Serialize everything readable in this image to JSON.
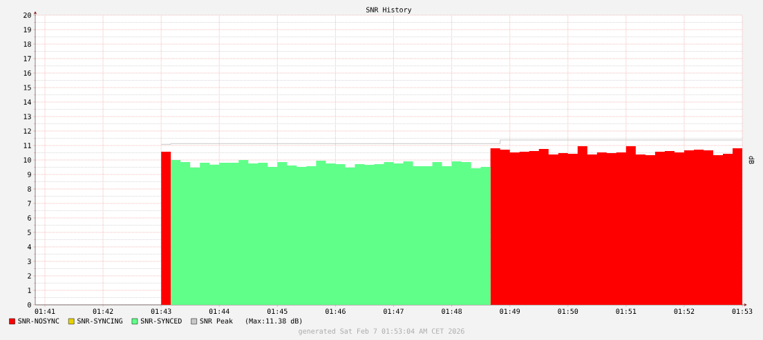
{
  "chart_data": {
    "type": "area",
    "title": "SNR History",
    "ylabel": "dB",
    "x": [
      1.71667,
      1.71944,
      1.71944,
      1.72222,
      1.72222,
      1.725,
      1.725,
      1.72778,
      1.72778,
      1.73056,
      1.73056,
      1.73333,
      1.73333,
      1.73611,
      1.73611,
      1.73889,
      1.73889,
      1.74167,
      1.74167,
      1.74444,
      1.74444,
      1.74722,
      1.74722,
      1.75,
      1.75,
      1.75278,
      1.75278,
      1.75556,
      1.75556,
      1.75833,
      1.75833,
      1.76111,
      1.76111,
      1.76389,
      1.76389,
      1.76667,
      1.76667,
      1.76944,
      1.76944,
      1.77222,
      1.77222,
      1.775,
      1.775,
      1.77778,
      1.77778,
      1.78056,
      1.78056,
      1.78333,
      1.78333,
      1.78611,
      1.78611,
      1.78889,
      1.78889,
      1.79167,
      1.79167,
      1.79444,
      1.79444,
      1.79722,
      1.79722,
      1.8,
      1.8,
      1.80278,
      1.80278,
      1.80556,
      1.80556,
      1.80833,
      1.80833,
      1.81111,
      1.81111,
      1.81389,
      1.81389,
      1.81667,
      1.81667,
      1.81944,
      1.81944,
      1.82222,
      1.82222,
      1.825,
      1.825,
      1.82778,
      1.82778,
      1.83056,
      1.83056,
      1.83333,
      1.83333,
      1.83611,
      1.83611,
      1.83889,
      1.83889,
      1.84167,
      1.84167,
      1.84444,
      1.84444,
      1.84722,
      1.84722,
      1.85,
      1.85,
      1.85278,
      1.85278,
      1.85556,
      1.85556,
      1.85833,
      1.85833,
      1.86111,
      1.86111,
      1.86389,
      1.86389,
      1.86667,
      1.86667,
      1.86944,
      1.86944,
      1.87222,
      1.87222,
      1.875,
      1.875,
      1.87778,
      1.87778,
      1.88056,
      1.88056,
      1.88333
    ],
    "series": [
      {
        "name": "SNR-NOSYNC",
        "color": "#ff0000",
        "values": [
          10.57,
          10.57,
          null,
          null,
          null,
          null,
          null,
          null,
          null,
          null,
          null,
          null,
          null,
          null,
          null,
          null,
          null,
          null,
          null,
          null,
          null,
          null,
          null,
          null,
          null,
          null,
          null,
          null,
          null,
          null,
          null,
          null,
          null,
          null,
          null,
          null,
          null,
          null,
          null,
          null,
          null,
          null,
          null,
          null,
          null,
          null,
          null,
          null,
          null,
          null,
          null,
          null,
          null,
          null,
          null,
          null,
          null,
          null,
          null,
          null,
          null,
          null,
          null,
          null,
          null,
          null,
          null,
          null,
          10.81,
          10.81,
          10.71,
          10.71,
          10.52,
          10.52,
          10.57,
          10.57,
          10.62,
          10.62,
          10.76,
          10.76,
          10.38,
          10.38,
          10.48,
          10.48,
          10.43,
          10.43,
          10.95,
          10.95,
          10.38,
          10.38,
          10.52,
          10.52,
          10.48,
          10.48,
          10.52,
          10.52,
          10.95,
          10.95,
          10.38,
          10.38,
          10.33,
          10.33,
          10.57,
          10.57,
          10.62,
          10.62,
          10.52,
          10.52,
          10.67,
          10.67,
          10.71,
          10.71,
          10.67,
          10.67,
          10.33,
          10.33,
          10.43,
          10.43,
          10.81,
          10.81
        ]
      },
      {
        "name": "SNR-SYNCING",
        "color": "#e6d200",
        "values": [
          null,
          null,
          null,
          null,
          null,
          null,
          null,
          null,
          null,
          null,
          null,
          null,
          null,
          null,
          null,
          null,
          null,
          null,
          null,
          null,
          null,
          null,
          null,
          null,
          null,
          null,
          null,
          null,
          null,
          null,
          null,
          null,
          null,
          null,
          null,
          null,
          null,
          null,
          null,
          null,
          null,
          null,
          null,
          null,
          null,
          null,
          null,
          null,
          null,
          null,
          null,
          null,
          null,
          null,
          null,
          null,
          null,
          null,
          null,
          null,
          null,
          null,
          null,
          null,
          null,
          null,
          null,
          null,
          null,
          null,
          null,
          null,
          null,
          null,
          null,
          null,
          null,
          null,
          null,
          null,
          null,
          null,
          null,
          null,
          null,
          null,
          null,
          null,
          null,
          null,
          null,
          null,
          null,
          null,
          null,
          null,
          null,
          null,
          null,
          null,
          null,
          null,
          null,
          null,
          null,
          null,
          null,
          null,
          null,
          null,
          null,
          null,
          null,
          null,
          null,
          null,
          null,
          null,
          null,
          null
        ]
      },
      {
        "name": "SNR-SYNCED",
        "color": "#60ff8a",
        "values": [
          null,
          null,
          10.0,
          10.0,
          9.86,
          9.86,
          9.48,
          9.48,
          9.81,
          9.81,
          9.68,
          9.68,
          9.81,
          9.81,
          9.81,
          9.81,
          10.0,
          10.0,
          9.76,
          9.76,
          9.81,
          9.81,
          9.52,
          9.52,
          9.86,
          9.86,
          9.62,
          9.62,
          9.52,
          9.52,
          9.57,
          9.57,
          9.95,
          9.95,
          9.76,
          9.76,
          9.71,
          9.71,
          9.48,
          9.48,
          9.71,
          9.71,
          9.67,
          9.67,
          9.71,
          9.71,
          9.86,
          9.86,
          9.76,
          9.76,
          9.9,
          9.9,
          9.57,
          9.57,
          9.57,
          9.57,
          9.86,
          9.86,
          9.57,
          9.57,
          9.9,
          9.9,
          9.86,
          9.86,
          9.43,
          9.43,
          9.52,
          9.52,
          null,
          null,
          null,
          null,
          null,
          null,
          null,
          null,
          null,
          null,
          null,
          null,
          null,
          null,
          null,
          null,
          null,
          null,
          null,
          null,
          null,
          null,
          null,
          null,
          null,
          null,
          null,
          null,
          null,
          null,
          null,
          null,
          null,
          null,
          null,
          null,
          null,
          null,
          null,
          null,
          null,
          null,
          null,
          null,
          null,
          null,
          null,
          null,
          null,
          null,
          null,
          null
        ]
      },
      {
        "name": "SNR Peak",
        "type": "line",
        "color": "#c8c8c8",
        "values": [
          11.08,
          11.08,
          11.13,
          11.13,
          11.13,
          11.13,
          11.13,
          11.13,
          11.13,
          11.13,
          11.13,
          11.13,
          11.13,
          11.13,
          11.13,
          11.13,
          11.13,
          11.13,
          11.13,
          11.13,
          11.13,
          11.13,
          11.13,
          11.13,
          11.13,
          11.13,
          11.13,
          11.13,
          11.13,
          11.13,
          11.13,
          11.13,
          11.13,
          11.13,
          11.13,
          11.13,
          11.13,
          11.13,
          11.13,
          11.13,
          11.13,
          11.13,
          11.13,
          11.13,
          11.13,
          11.13,
          11.13,
          11.13,
          11.13,
          11.13,
          11.13,
          11.13,
          11.13,
          11.13,
          11.13,
          11.13,
          11.13,
          11.13,
          11.13,
          11.13,
          11.13,
          11.13,
          11.13,
          11.13,
          11.13,
          11.13,
          11.13,
          11.13,
          11.13,
          11.13,
          11.38,
          11.38,
          11.38,
          11.38,
          11.38,
          11.38,
          11.38,
          11.38,
          11.38,
          11.38,
          11.38,
          11.38,
          11.38,
          11.38,
          11.38,
          11.38,
          11.38,
          11.38,
          11.38,
          11.38,
          11.38,
          11.38,
          11.38,
          11.38,
          11.38,
          11.38,
          11.38,
          11.38,
          11.38,
          11.38,
          11.38,
          11.38,
          11.38,
          11.38,
          11.38,
          11.38,
          11.38,
          11.38,
          11.38,
          11.38,
          11.38,
          11.38,
          11.38,
          11.38,
          11.38,
          11.38,
          11.38,
          11.38,
          11.38,
          11.38
        ]
      }
    ],
    "xlim": [
      1.68056,
      1.88333
    ],
    "xticks": [
      {
        "value": 1.68333,
        "label": "01:41"
      },
      {
        "value": 1.7,
        "label": "01:42"
      },
      {
        "value": 1.71667,
        "label": "01:43"
      },
      {
        "value": 1.73333,
        "label": "01:44"
      },
      {
        "value": 1.75,
        "label": "01:45"
      },
      {
        "value": 1.76667,
        "label": "01:46"
      },
      {
        "value": 1.78333,
        "label": "01:47"
      },
      {
        "value": 1.8,
        "label": "01:48"
      },
      {
        "value": 1.81667,
        "label": "01:49"
      },
      {
        "value": 1.83333,
        "label": "01:50"
      },
      {
        "value": 1.85,
        "label": "01:51"
      },
      {
        "value": 1.86667,
        "label": "01:52"
      },
      {
        "value": 1.88333,
        "label": "01:53"
      }
    ],
    "ylim": [
      0,
      20
    ],
    "yticks": [
      0,
      1,
      2,
      3,
      4,
      5,
      6,
      7,
      8,
      9,
      10,
      11,
      12,
      13,
      14,
      15,
      16,
      17,
      18,
      19,
      20
    ],
    "grid": true,
    "legend": "bottom",
    "annotations": [
      "(Max:11.38 dB)",
      "generated Sat Feb 7 01:53:04 AM CET 2026"
    ]
  }
}
